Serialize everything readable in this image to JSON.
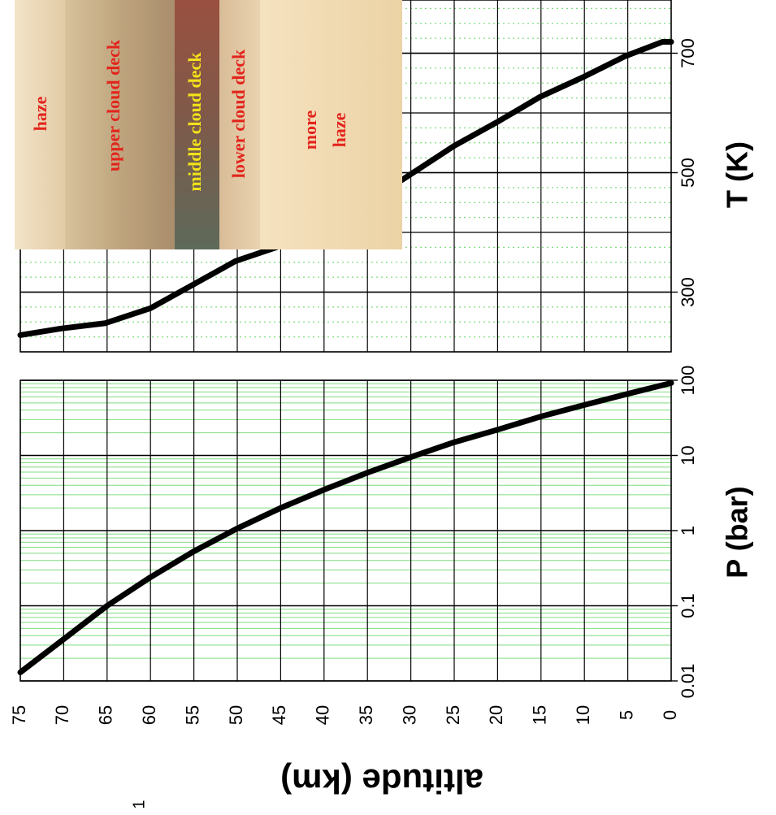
{
  "chart_data": [
    {
      "type": "line",
      "y_label": "P (bar)",
      "x_label": "altitude (km)",
      "log_y": true,
      "grid": true,
      "x": [
        0,
        5,
        10,
        15,
        20,
        25,
        30,
        35,
        40,
        45,
        50,
        55,
        60,
        65,
        70,
        75
      ],
      "series": [
        {
          "color": "#000000",
          "values": [
            92,
            66,
            47,
            33,
            22,
            15,
            9.5,
            5.9,
            3.5,
            2.0,
            1.07,
            0.53,
            0.24,
            0.1,
            0.036,
            0.013
          ]
        }
      ],
      "xlim": [
        75,
        0
      ],
      "xticks": [
        75,
        70,
        65,
        60,
        55,
        50,
        45,
        40,
        35,
        30,
        25,
        20,
        15,
        10,
        5,
        0
      ],
      "ylim": [
        0.01,
        100
      ],
      "yticks": [
        0.01,
        0.1,
        1,
        10,
        100
      ]
    },
    {
      "type": "line",
      "y_label": "T (K)",
      "grid": true,
      "x": [
        0,
        1,
        5.3,
        10,
        15.1,
        19.9,
        25,
        31,
        45.5,
        50.2,
        54.9,
        60,
        65.2,
        70.3,
        75
      ],
      "series": [
        {
          "color": "#000000",
          "values": [
            719,
            719,
            695,
            661,
            627,
            586,
            545,
            488,
            375,
            352,
            314,
            273,
            248,
            239,
            228
          ]
        }
      ],
      "xlim": [
        75,
        0
      ],
      "ylim": [
        200,
        800
      ],
      "yticks": [
        300,
        500,
        700
      ],
      "annotations": [
        "haze",
        "upper cloud deck",
        "middle cloud deck",
        "lower cloud deck",
        "more",
        "haze"
      ]
    }
  ],
  "page_mark": "1"
}
